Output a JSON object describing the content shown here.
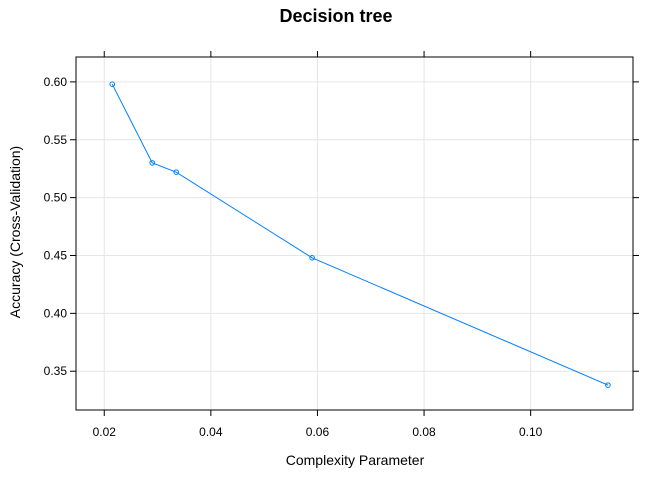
{
  "chart_data": {
    "type": "line",
    "title": "Decision tree",
    "xlabel": "Complexity Parameter",
    "ylabel": "Accuracy (Cross-Validation)",
    "xlim": [
      0.0147,
      0.1192
    ],
    "ylim": [
      0.3165,
      0.6215
    ],
    "x_ticks": [
      0.02,
      0.04,
      0.06,
      0.08,
      0.1
    ],
    "x_tick_labels": [
      "0.02",
      "0.04",
      "0.06",
      "0.08",
      "0.10"
    ],
    "y_ticks": [
      0.35,
      0.4,
      0.45,
      0.5,
      0.55,
      0.6
    ],
    "y_tick_labels": [
      "0.35",
      "0.40",
      "0.45",
      "0.50",
      "0.55",
      "0.60"
    ],
    "grid": true,
    "line_color": "#0080ff",
    "series": [
      {
        "x": [
          0.0215,
          0.029,
          0.0335,
          0.059,
          0.1145
        ],
        "y": [
          0.598,
          0.53,
          0.522,
          0.448,
          0.338
        ]
      }
    ]
  }
}
